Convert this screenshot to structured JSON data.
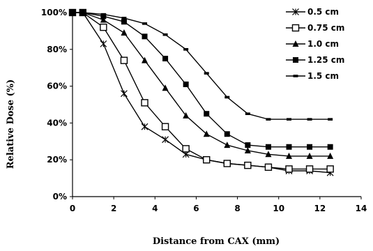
{
  "chart_data": {
    "type": "line",
    "xlabel": "Distance from CAX (mm)",
    "ylabel": "Relative Dose (%)",
    "xlim": [
      0,
      14
    ],
    "ylim": [
      0,
      100
    ],
    "x_ticks": [
      "0",
      "2",
      "4",
      "6",
      "8",
      "10",
      "12",
      "14"
    ],
    "y_ticks": [
      "0%",
      "20%",
      "40%",
      "60%",
      "80%",
      "100%"
    ],
    "grid": false,
    "legend_position": "top-right",
    "series": [
      {
        "name": "0.5 cm",
        "marker": "asterisk",
        "x": [
          0,
          0.5,
          1.5,
          2.5,
          3.5,
          4.5,
          5.5,
          6.5,
          7.5,
          8.5,
          9.5,
          10.5,
          11.5,
          12.5
        ],
        "y": [
          100,
          100,
          83,
          56,
          38,
          31,
          23,
          20,
          18,
          17,
          16,
          14,
          14,
          13
        ]
      },
      {
        "name": "0.75 cm",
        "marker": "open-square",
        "x": [
          0,
          0.5,
          1.5,
          2.5,
          3.5,
          4.5,
          5.5,
          6.5,
          7.5,
          8.5,
          9.5,
          10.5,
          11.5,
          12.5
        ],
        "y": [
          100,
          100,
          92,
          74,
          51,
          38,
          26,
          20,
          18,
          17,
          16,
          15,
          15,
          15
        ]
      },
      {
        "name": "1.0 cm",
        "marker": "triangle",
        "x": [
          0,
          0.5,
          1.5,
          2.5,
          3.5,
          4.5,
          5.5,
          6.5,
          7.5,
          8.5,
          9.5,
          10.5,
          11.5,
          12.5
        ],
        "y": [
          100,
          100,
          96,
          89,
          74,
          59,
          44,
          34,
          28,
          25,
          23,
          22,
          22,
          22
        ]
      },
      {
        "name": "1.25 cm",
        "marker": "square",
        "x": [
          0,
          0.5,
          1.5,
          2.5,
          3.5,
          4.5,
          5.5,
          6.5,
          7.5,
          8.5,
          9.5,
          10.5,
          11.5,
          12.5
        ],
        "y": [
          100,
          100,
          98,
          95,
          87,
          75,
          61,
          45,
          34,
          28,
          27,
          27,
          27,
          27
        ]
      },
      {
        "name": "1.5 cm",
        "marker": "dash",
        "x": [
          0,
          0.5,
          1.5,
          2.5,
          3.5,
          4.5,
          5.5,
          6.5,
          7.5,
          8.5,
          9.5,
          10.5,
          11.5,
          12.5
        ],
        "y": [
          100,
          100,
          99,
          97,
          94,
          88,
          80,
          67,
          54,
          45,
          42,
          42,
          42,
          42
        ]
      }
    ]
  }
}
